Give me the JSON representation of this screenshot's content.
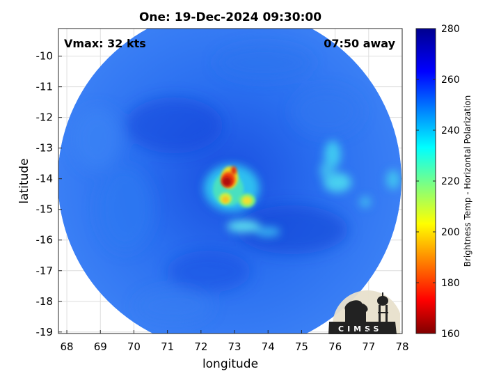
{
  "title": "One: 19-Dec-2024 09:30:00",
  "vmax_label": "Vmax: 32 kts",
  "away_label": "07:50 away",
  "xlabel": "longitude",
  "ylabel": "latitude",
  "colorbar_label": "Brightness Temp - Horizontal Polarization",
  "logo_text": "CIMSS",
  "colors": {
    "ocean_blue": "#2a6ff0",
    "deep_blue": "#1140c8",
    "cyan": "#38c8f0",
    "cold_core": "#b01010",
    "grid": "#dddddd"
  },
  "chart_data": {
    "type": "heatmap",
    "title": "One: 19-Dec-2024 09:30:00",
    "xlabel": "longitude",
    "ylabel": "latitude",
    "xlim": [
      67.75,
      78.0
    ],
    "ylim": [
      -19.05,
      -9.1
    ],
    "xticks": [
      68,
      69,
      70,
      71,
      72,
      73,
      74,
      75,
      76,
      77,
      78
    ],
    "yticks": [
      -10,
      -11,
      -12,
      -13,
      -14,
      -15,
      -16,
      -17,
      -18,
      -19
    ],
    "grid": true,
    "colorbar": {
      "label": "Brightness Temp - Horizontal Polarization",
      "range": [
        160,
        280
      ],
      "ticks": [
        280,
        260,
        240,
        220,
        200,
        180,
        160
      ],
      "colormap": "jet"
    },
    "swath_center": {
      "lon": 72.95,
      "lat": -14.1
    },
    "features": [
      {
        "name": "cold core",
        "lon": 72.85,
        "lat": -14.1,
        "value": 165
      },
      {
        "name": "convection north",
        "lon": 73.0,
        "lat": -13.75,
        "value": 190
      },
      {
        "name": "convection west",
        "lon": 72.8,
        "lat": -14.65,
        "value": 205
      },
      {
        "name": "convection east",
        "lon": 73.45,
        "lat": -14.65,
        "value": 210
      },
      {
        "name": "band south",
        "lon": 73.5,
        "lat": -15.8,
        "value": 232
      },
      {
        "name": "band east",
        "lon": 75.8,
        "lat": -13.7,
        "value": 238
      },
      {
        "name": "band east lower",
        "lon": 76.2,
        "lat": -14.6,
        "value": 236
      },
      {
        "name": "edge east",
        "lon": 77.9,
        "lat": -14.1,
        "value": 240
      }
    ],
    "annotations": [
      "Vmax: 32 kts",
      "07:50 away"
    ]
  }
}
